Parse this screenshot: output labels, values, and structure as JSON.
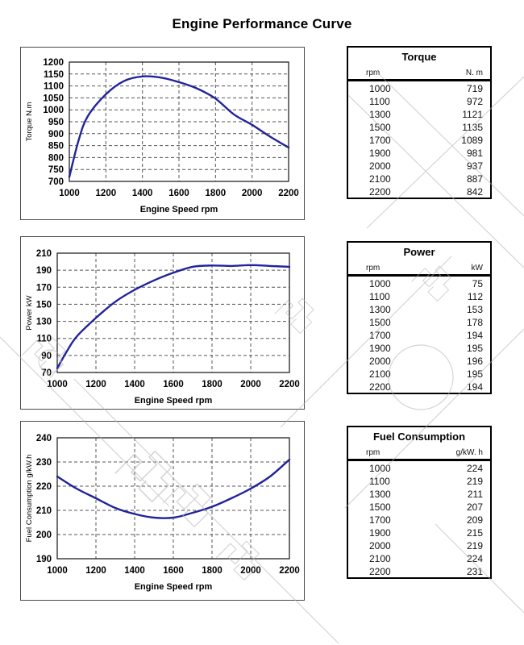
{
  "page_title": "Engine Performance Curve",
  "colors": {
    "curve": "#22239b",
    "grid": "#555555",
    "plot_border": "#222222",
    "box_border": "#4a4a4a",
    "table_border": "#000000",
    "watermark": "#b3b3b3",
    "text": "#000000"
  },
  "chart_data": [
    {
      "type": "line",
      "title": "Torque",
      "xlabel": "Engine Speed rpm",
      "ylabel": "Torque N.m",
      "xlim": [
        1000,
        2200
      ],
      "xstep": 200,
      "ylim": [
        700,
        1200
      ],
      "ystep": 50,
      "grid": true,
      "legend": "none",
      "x": [
        1000,
        1050,
        1100,
        1200,
        1300,
        1400,
        1500,
        1600,
        1700,
        1800,
        1900,
        2000,
        2100,
        2200
      ],
      "y": [
        719,
        870,
        972,
        1065,
        1121,
        1140,
        1135,
        1116,
        1089,
        1047,
        981,
        937,
        887,
        842
      ]
    },
    {
      "type": "line",
      "title": "Power",
      "xlabel": "Engine Speed rpm",
      "ylabel": "Power kW",
      "xlim": [
        1000,
        2200
      ],
      "xstep": 200,
      "ylim": [
        70,
        210
      ],
      "ystep": 20,
      "grid": true,
      "legend": "none",
      "x": [
        1000,
        1050,
        1100,
        1200,
        1300,
        1400,
        1500,
        1600,
        1700,
        1800,
        1900,
        2000,
        2100,
        2200
      ],
      "y": [
        75,
        95,
        112,
        134,
        153,
        167,
        178,
        187,
        194,
        195.5,
        195,
        196,
        195,
        194
      ]
    },
    {
      "type": "line",
      "title": "Fuel Consumption",
      "xlabel": "Engine Speed rpm",
      "ylabel": "Fuel Consumption g/kW.h",
      "xlim": [
        1000,
        2200
      ],
      "xstep": 200,
      "ylim": [
        190,
        240
      ],
      "ystep": 10,
      "grid": true,
      "legend": "none",
      "x": [
        1000,
        1100,
        1200,
        1300,
        1400,
        1500,
        1600,
        1700,
        1800,
        1900,
        2000,
        2100,
        2200
      ],
      "y": [
        224,
        219,
        215,
        211,
        208.5,
        207,
        207,
        209,
        211.5,
        215,
        219,
        224,
        231
      ]
    }
  ],
  "tables": [
    {
      "title": "Torque",
      "col_headers": [
        "rpm",
        "N. m"
      ],
      "rows": [
        [
          "1000",
          "719"
        ],
        [
          "1100",
          "972"
        ],
        [
          "1300",
          "1121"
        ],
        [
          "1500",
          "1135"
        ],
        [
          "1700",
          "1089"
        ],
        [
          "1900",
          "981"
        ],
        [
          "2000",
          "937"
        ],
        [
          "2100",
          "887"
        ],
        [
          "2200",
          "842"
        ]
      ]
    },
    {
      "title": "Power",
      "col_headers": [
        "rpm",
        "kW"
      ],
      "rows": [
        [
          "1000",
          "75"
        ],
        [
          "1100",
          "112"
        ],
        [
          "1300",
          "153"
        ],
        [
          "1500",
          "178"
        ],
        [
          "1700",
          "194"
        ],
        [
          "1900",
          "195"
        ],
        [
          "2000",
          "196"
        ],
        [
          "2100",
          "195"
        ],
        [
          "2200",
          "194"
        ]
      ]
    },
    {
      "title": "Fuel Consumption",
      "col_headers": [
        "rpm",
        "g/kW. h"
      ],
      "rows": [
        [
          "1000",
          "224"
        ],
        [
          "1100",
          "219"
        ],
        [
          "1300",
          "211"
        ],
        [
          "1500",
          "207"
        ],
        [
          "1700",
          "209"
        ],
        [
          "1900",
          "215"
        ],
        [
          "2000",
          "219"
        ],
        [
          "2100",
          "224"
        ],
        [
          "2200",
          "231"
        ]
      ]
    }
  ]
}
